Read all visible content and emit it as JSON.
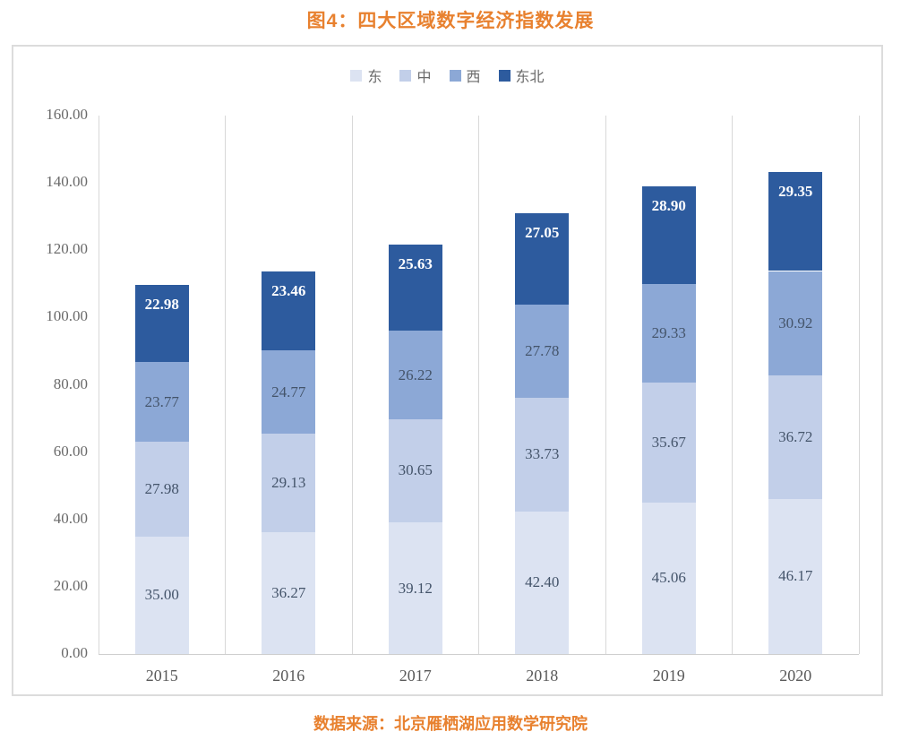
{
  "title": "图4：四大区域数字经济指数发展",
  "source": "数据来源：北京雁栖湖应用数学研究院",
  "colors": {
    "accent_orange": "#e8812f",
    "axis_text": "#6a6a6a",
    "value_text": "#44546a",
    "grid": "#d8d8d8",
    "panel_border": "#dcdcdc"
  },
  "chart_data": {
    "type": "bar",
    "stacked": true,
    "title": "图4：四大区域数字经济指数发展",
    "categories": [
      "2015",
      "2016",
      "2017",
      "2018",
      "2019",
      "2020"
    ],
    "series": [
      {
        "name": "东",
        "color": "#dce3f2",
        "label_color": "#44546a",
        "values": [
          35.0,
          36.27,
          39.12,
          42.4,
          45.06,
          46.17
        ]
      },
      {
        "name": "中",
        "color": "#c2cfe9",
        "label_color": "#44546a",
        "values": [
          27.98,
          29.13,
          30.65,
          33.73,
          35.67,
          36.72
        ]
      },
      {
        "name": "西",
        "color": "#8ca8d6",
        "label_color": "#44546a",
        "values": [
          23.77,
          24.77,
          26.22,
          27.78,
          29.33,
          30.92
        ]
      },
      {
        "name": "东北",
        "color": "#2d5b9e",
        "label_color": "#ffffff",
        "values": [
          22.98,
          23.46,
          25.63,
          27.05,
          28.9,
          29.35
        ]
      }
    ],
    "ylim": [
      0,
      160
    ],
    "ytick_step": 20,
    "ytick_labels": [
      "0.00",
      "20.00",
      "40.00",
      "60.00",
      "80.00",
      "100.00",
      "120.00",
      "140.00",
      "160.00"
    ],
    "value_label_decimals": 2,
    "legend_position": "top",
    "grid": "vertical-category-boundaries",
    "xlabel": "",
    "ylabel": ""
  }
}
